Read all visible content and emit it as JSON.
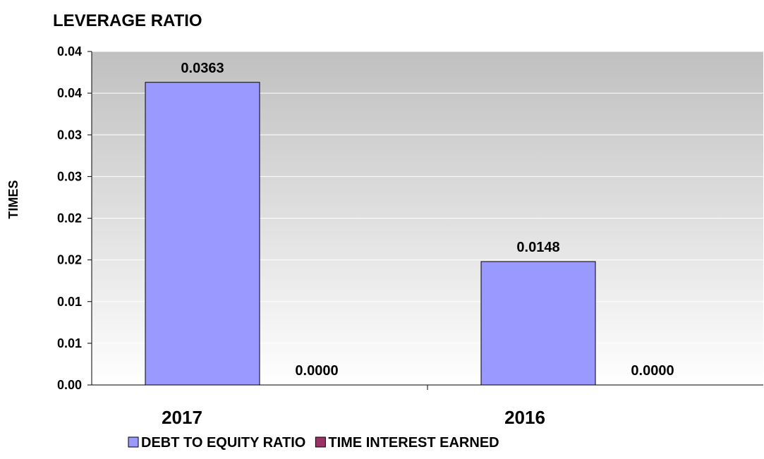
{
  "chart_data": {
    "type": "bar",
    "title": "LEVERAGE RATIO",
    "ylabel": "TIMES",
    "xlabel": "",
    "categories": [
      "2017",
      "2016"
    ],
    "series": [
      {
        "name": "DEBT TO EQUITY RATIO",
        "color": "#9999FF",
        "values": [
          0.0363,
          0.0148
        ],
        "labels": [
          "0.0363",
          "0.0148"
        ]
      },
      {
        "name": "TIME INTEREST EARNED",
        "color": "#993366",
        "values": [
          0.0,
          0.0
        ],
        "labels": [
          "0.0000",
          "0.0000"
        ]
      }
    ],
    "yticks": [
      0.0,
      0.005,
      0.01,
      0.015,
      0.02,
      0.025,
      0.03,
      0.035,
      0.04
    ],
    "ytick_labels": [
      "0.00",
      "0.01",
      "0.01",
      "0.02",
      "0.02",
      "0.03",
      "0.03",
      "0.04",
      "0.04"
    ],
    "ylim": [
      0,
      0.04
    ],
    "grid": true,
    "legend_position": "bottom"
  }
}
